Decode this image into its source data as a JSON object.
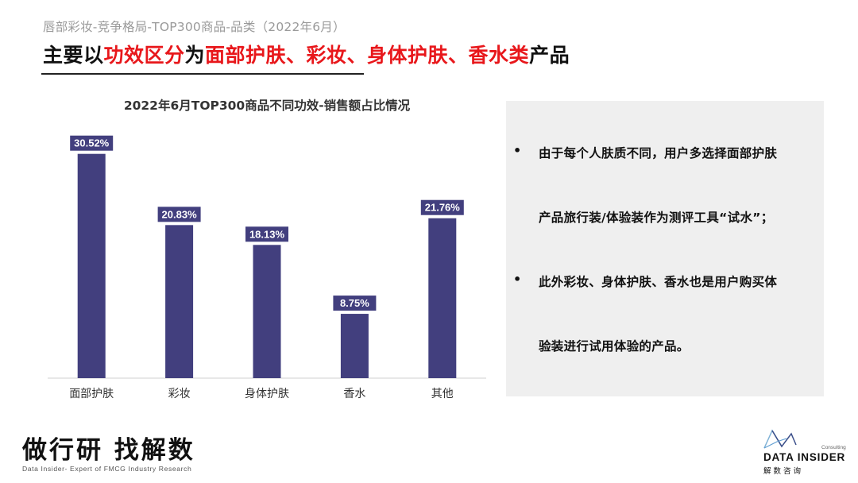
{
  "header": {
    "subtitle": "唇部彩妆-竞争格局-TOP300商品-品类（2022年6月）",
    "headline_parts": [
      {
        "text": "主要以",
        "red": false
      },
      {
        "text": "功效区分",
        "red": true
      },
      {
        "text": "为",
        "red": false
      },
      {
        "text": "面部护肤、彩妆、身体护肤、香水类",
        "red": true
      },
      {
        "text": "产品",
        "red": false
      }
    ]
  },
  "chart_data": {
    "type": "bar",
    "title": "2022年6月TOP300商品不同功效-销售额占比情况",
    "categories": [
      "面部护肤",
      "彩妆",
      "身体护肤",
      "香水",
      "其他"
    ],
    "values": [
      30.52,
      20.83,
      18.13,
      8.75,
      21.76
    ],
    "data_labels": [
      "30.52%",
      "20.83%",
      "18.13%",
      "8.75%",
      "21.76%"
    ],
    "ylim": [
      0,
      32
    ],
    "grid": false,
    "bar_color": "#423f7e",
    "xlabel": "",
    "ylabel": ""
  },
  "panel": {
    "bullet_glyph": "•",
    "lines": [
      {
        "text": "由于每个人肤质不同，用户多选择面部护肤",
        "bullet": true
      },
      {
        "text": "产品旅行装/体验装作为测评工具“试水”；",
        "bullet": false
      },
      {
        "text": "此外彩妆、身体护肤、香水也是用户购买体",
        "bullet": true
      },
      {
        "text": "验装进行试用体验的产品。",
        "bullet": false
      }
    ]
  },
  "footer": {
    "slogan": "做行研 找解数",
    "slogan_sub": "Data Insider- Expert of FMCG Industry Research",
    "logo_name": "DATA INSIDER",
    "logo_cn": "解数咨询",
    "logo_tag": "Consulting"
  },
  "colors": {
    "accent_red": "#e8171b",
    "bar": "#423f7e",
    "panel_bg": "#efefef"
  }
}
